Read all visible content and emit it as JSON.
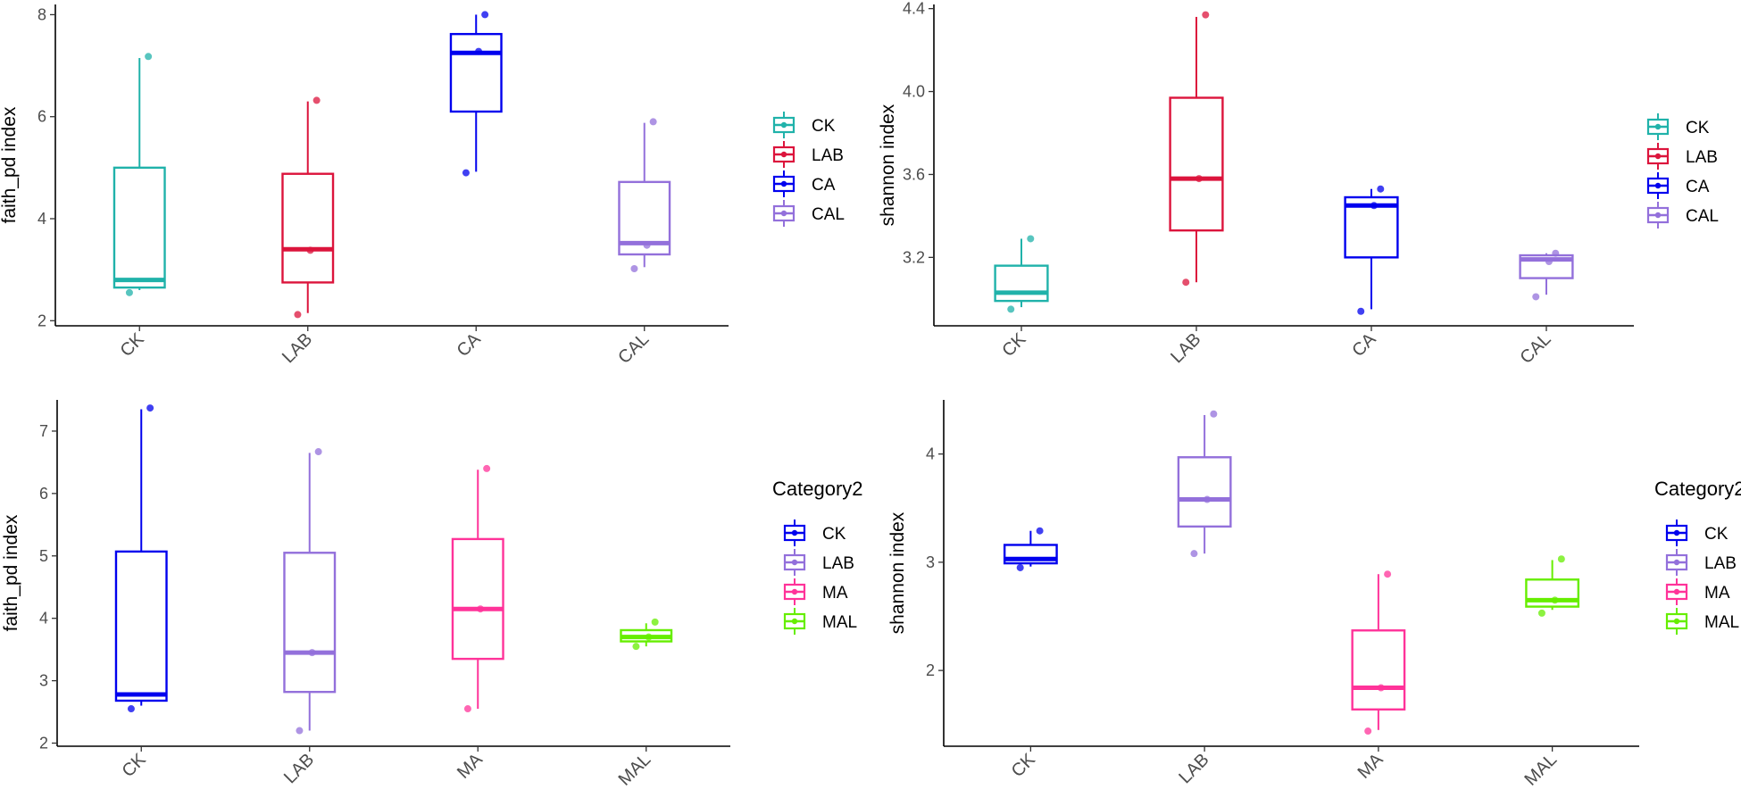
{
  "chart_data": [
    {
      "type": "box",
      "ylabel": "faith_pd index",
      "ylim": [
        1.9,
        8.2
      ],
      "yticks": [
        2,
        4,
        6,
        8
      ],
      "legend": {
        "title": "",
        "placement": "right"
      },
      "categories": [
        "CK",
        "LAB",
        "CA",
        "CAL"
      ],
      "series": [
        {
          "name": "CK",
          "color": "#20b2aa",
          "min": 2.6,
          "q1": 2.65,
          "median": 2.8,
          "q3": 5.0,
          "max": 7.15,
          "points": [
            2.55,
            7.18
          ]
        },
        {
          "name": "LAB",
          "color": "#dc143c",
          "min": 2.15,
          "q1": 2.75,
          "median": 3.4,
          "q3": 4.88,
          "max": 6.3,
          "points": [
            2.12,
            6.32,
            3.38
          ]
        },
        {
          "name": "CA",
          "color": "#0000ee",
          "min": 4.92,
          "q1": 6.1,
          "median": 7.25,
          "q3": 7.62,
          "max": 8.0,
          "points": [
            4.9,
            8.0,
            7.28
          ]
        },
        {
          "name": "CAL",
          "color": "#9370db",
          "min": 3.05,
          "q1": 3.3,
          "median": 3.52,
          "q3": 4.72,
          "max": 5.88,
          "points": [
            3.02,
            5.9,
            3.48
          ]
        }
      ]
    },
    {
      "type": "box",
      "ylabel": "shannon index",
      "ylim": [
        2.87,
        4.42
      ],
      "yticks": [
        3.2,
        3.6,
        4.0,
        4.4
      ],
      "ytick_labels": [
        "3.2",
        "3.6",
        "4.0",
        "4.4"
      ],
      "legend": {
        "title": "",
        "placement": "right"
      },
      "categories": [
        "CK",
        "LAB",
        "CA",
        "CAL"
      ],
      "series": [
        {
          "name": "CK",
          "color": "#20b2aa",
          "min": 2.96,
          "q1": 2.99,
          "median": 3.03,
          "q3": 3.16,
          "max": 3.29,
          "points": [
            2.95,
            3.29
          ]
        },
        {
          "name": "LAB",
          "color": "#dc143c",
          "min": 3.08,
          "q1": 3.33,
          "median": 3.58,
          "q3": 3.97,
          "max": 4.36,
          "points": [
            3.08,
            4.37,
            3.58
          ]
        },
        {
          "name": "CA",
          "color": "#0000ee",
          "min": 2.95,
          "q1": 3.2,
          "median": 3.45,
          "q3": 3.49,
          "max": 3.53,
          "points": [
            2.94,
            3.53,
            3.45
          ]
        },
        {
          "name": "CAL",
          "color": "#9370db",
          "min": 3.02,
          "q1": 3.1,
          "median": 3.19,
          "q3": 3.21,
          "max": 3.22,
          "points": [
            3.01,
            3.22,
            3.18
          ]
        }
      ]
    },
    {
      "type": "box",
      "ylabel": "faith_pd index",
      "ylim": [
        1.95,
        7.5
      ],
      "yticks": [
        2,
        3,
        4,
        5,
        6,
        7
      ],
      "legend": {
        "title": "Category2",
        "placement": "right"
      },
      "categories": [
        "CK",
        "LAB",
        "MA",
        "MAL"
      ],
      "series": [
        {
          "name": "CK",
          "color": "#0000ee",
          "min": 2.6,
          "q1": 2.68,
          "median": 2.78,
          "q3": 5.07,
          "max": 7.35,
          "points": [
            2.55,
            7.37
          ]
        },
        {
          "name": "LAB",
          "color": "#9370db",
          "min": 2.2,
          "q1": 2.82,
          "median": 3.45,
          "q3": 5.05,
          "max": 6.65,
          "points": [
            2.2,
            6.67,
            3.45
          ]
        },
        {
          "name": "MA",
          "color": "#ff3399",
          "min": 2.55,
          "q1": 3.35,
          "median": 4.15,
          "q3": 5.27,
          "max": 6.38,
          "points": [
            2.55,
            6.4,
            4.15
          ]
        },
        {
          "name": "MAL",
          "color": "#66ee00",
          "min": 3.55,
          "q1": 3.63,
          "median": 3.7,
          "q3": 3.81,
          "max": 3.92,
          "points": [
            3.55,
            3.94,
            3.7
          ]
        }
      ]
    },
    {
      "type": "box",
      "ylabel": "shannon index",
      "ylim": [
        1.3,
        4.5
      ],
      "yticks": [
        2,
        3,
        4
      ],
      "legend": {
        "title": "Category2",
        "placement": "right"
      },
      "categories": [
        "CK",
        "LAB",
        "MA",
        "MAL"
      ],
      "series": [
        {
          "name": "CK",
          "color": "#0000ee",
          "min": 2.96,
          "q1": 2.99,
          "median": 3.03,
          "q3": 3.16,
          "max": 3.29,
          "points": [
            2.95,
            3.29
          ]
        },
        {
          "name": "LAB",
          "color": "#9370db",
          "min": 3.08,
          "q1": 3.33,
          "median": 3.58,
          "q3": 3.97,
          "max": 4.36,
          "points": [
            3.08,
            4.37,
            3.58
          ]
        },
        {
          "name": "MA",
          "color": "#ff3399",
          "min": 1.45,
          "q1": 1.64,
          "median": 1.84,
          "q3": 2.37,
          "max": 2.89,
          "points": [
            1.44,
            2.89,
            1.84
          ]
        },
        {
          "name": "MAL",
          "color": "#66ee00",
          "min": 2.56,
          "q1": 2.59,
          "median": 2.65,
          "q3": 2.84,
          "max": 3.02,
          "points": [
            2.53,
            3.03,
            2.65
          ]
        }
      ]
    }
  ]
}
